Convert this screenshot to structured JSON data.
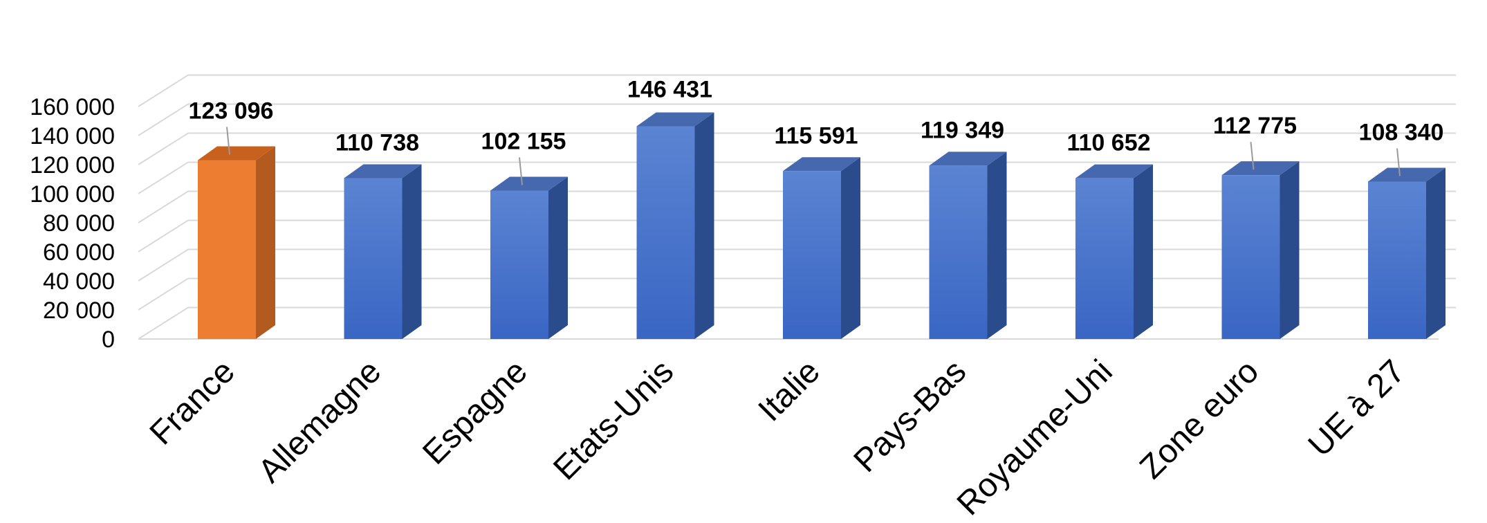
{
  "chart_data": {
    "type": "bar",
    "categories": [
      "France",
      "Allemagne",
      "Espagne",
      "Etats-Unis",
      "Italie",
      "Pays-Bas",
      "Royaume-Uni",
      "Zone euro",
      "UE à 27"
    ],
    "values": [
      123096,
      110738,
      102155,
      146431,
      115591,
      119349,
      110652,
      112775,
      108340
    ],
    "value_labels": [
      "123 096",
      "110 738",
      "102 155",
      "146 431",
      "115 591",
      "119 349",
      "110 652",
      "112 775",
      "108 340"
    ],
    "ylim": [
      0,
      160000
    ],
    "yticks": [
      0,
      20000,
      40000,
      60000,
      80000,
      100000,
      120000,
      140000,
      160000
    ],
    "ytick_labels": [
      "0",
      "20 000",
      "40 000",
      "60 000",
      "80 000",
      "100 000",
      "120 000",
      "140 000",
      "160 000"
    ],
    "grid": true,
    "three_d": true,
    "highlight_category": "France",
    "colors": {
      "highlight_front": "#ED7D31",
      "highlight_side": "#B35A1E",
      "highlight_top": "#C8611E",
      "bar_front_top": "#5B84D2",
      "bar_front_bottom": "#3A66C4",
      "bar_side": "#2A4B8C",
      "bar_top": "#4668AE"
    }
  }
}
